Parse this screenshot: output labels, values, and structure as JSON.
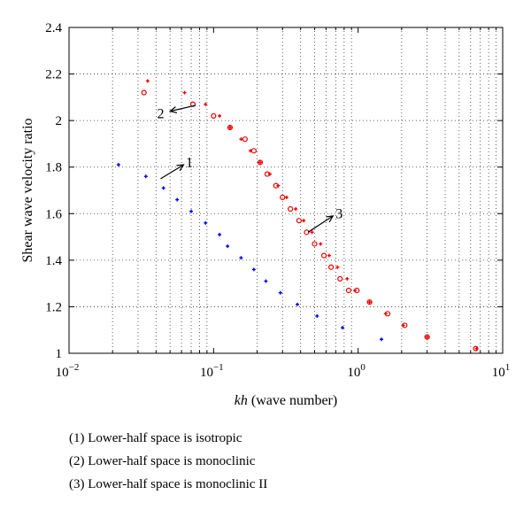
{
  "chart_data": {
    "type": "scatter",
    "xscale": "log",
    "xlim": [
      0.01,
      10
    ],
    "ylim": [
      1,
      2.4
    ],
    "grid": true,
    "xlabel_italic": "kh",
    "xlabel_rest": " (wave number)",
    "ylabel": "Shear wave velocity ratio",
    "xticks": [
      {
        "base": "10",
        "exp": "−2",
        "value": 0.01
      },
      {
        "base": "10",
        "exp": "−1",
        "value": 0.1
      },
      {
        "base": "10",
        "exp": "0",
        "value": 1
      },
      {
        "base": "10",
        "exp": "1",
        "value": 10
      }
    ],
    "yticks": [
      "1",
      "1.2",
      "1.4",
      "1.6",
      "1.8",
      "2",
      "2.2",
      "2.4"
    ],
    "series": [
      {
        "marker": "plus",
        "color": "#0000ee",
        "x": [
          0.022,
          0.034,
          0.045,
          0.056,
          0.07,
          0.088,
          0.11,
          0.125,
          0.155,
          0.19,
          0.23,
          0.29,
          0.38,
          0.52,
          0.78,
          1.45
        ],
        "y": [
          1.81,
          1.76,
          1.71,
          1.66,
          1.61,
          1.56,
          1.51,
          1.46,
          1.41,
          1.36,
          1.31,
          1.26,
          1.21,
          1.16,
          1.11,
          1.06
        ]
      },
      {
        "marker": "plus",
        "color": "#ee0000",
        "x": [
          0.035,
          0.063,
          0.088,
          0.11,
          0.13,
          0.155,
          0.18,
          0.21,
          0.245,
          0.28,
          0.32,
          0.37,
          0.42,
          0.48,
          0.55,
          0.63,
          0.72,
          0.84,
          0.95,
          1.2,
          1.55,
          2.05,
          3.0,
          6.6
        ],
        "y": [
          2.17,
          2.12,
          2.07,
          2.02,
          1.97,
          1.92,
          1.87,
          1.82,
          1.77,
          1.72,
          1.67,
          1.62,
          1.57,
          1.52,
          1.47,
          1.42,
          1.37,
          1.32,
          1.27,
          1.22,
          1.17,
          1.12,
          1.07,
          1.02
        ]
      },
      {
        "marker": "circle",
        "color": "#ee0000",
        "x": [
          0.033,
          0.072,
          0.1,
          0.13,
          0.165,
          0.19,
          0.21,
          0.235,
          0.27,
          0.3,
          0.34,
          0.39,
          0.44,
          0.5,
          0.58,
          0.65,
          0.75,
          0.86,
          0.98,
          1.2,
          1.6,
          2.1,
          3.0,
          6.5
        ],
        "y": [
          2.12,
          2.07,
          2.02,
          1.97,
          1.92,
          1.87,
          1.82,
          1.77,
          1.72,
          1.67,
          1.62,
          1.57,
          1.52,
          1.47,
          1.42,
          1.37,
          1.32,
          1.27,
          1.27,
          1.22,
          1.17,
          1.12,
          1.07,
          1.02
        ]
      }
    ],
    "annotations": [
      {
        "label": "1",
        "text_x": 0.068,
        "text_y": 1.82,
        "from_x": 0.043,
        "from_y": 1.75,
        "to_x": 0.062,
        "to_y": 1.81
      },
      {
        "label": "2",
        "text_x": 0.043,
        "text_y": 2.03,
        "from_x": 0.075,
        "from_y": 2.065,
        "to_x": 0.05,
        "to_y": 2.04
      },
      {
        "label": "3",
        "text_x": 0.74,
        "text_y": 1.6,
        "from_x": 0.45,
        "from_y": 1.52,
        "to_x": 0.67,
        "to_y": 1.59
      }
    ]
  },
  "legend": [
    "(1) Lower-half space is isotropic",
    "(2) Lower-half space is monoclinic",
    "(3) Lower-half space is monoclinic II"
  ]
}
